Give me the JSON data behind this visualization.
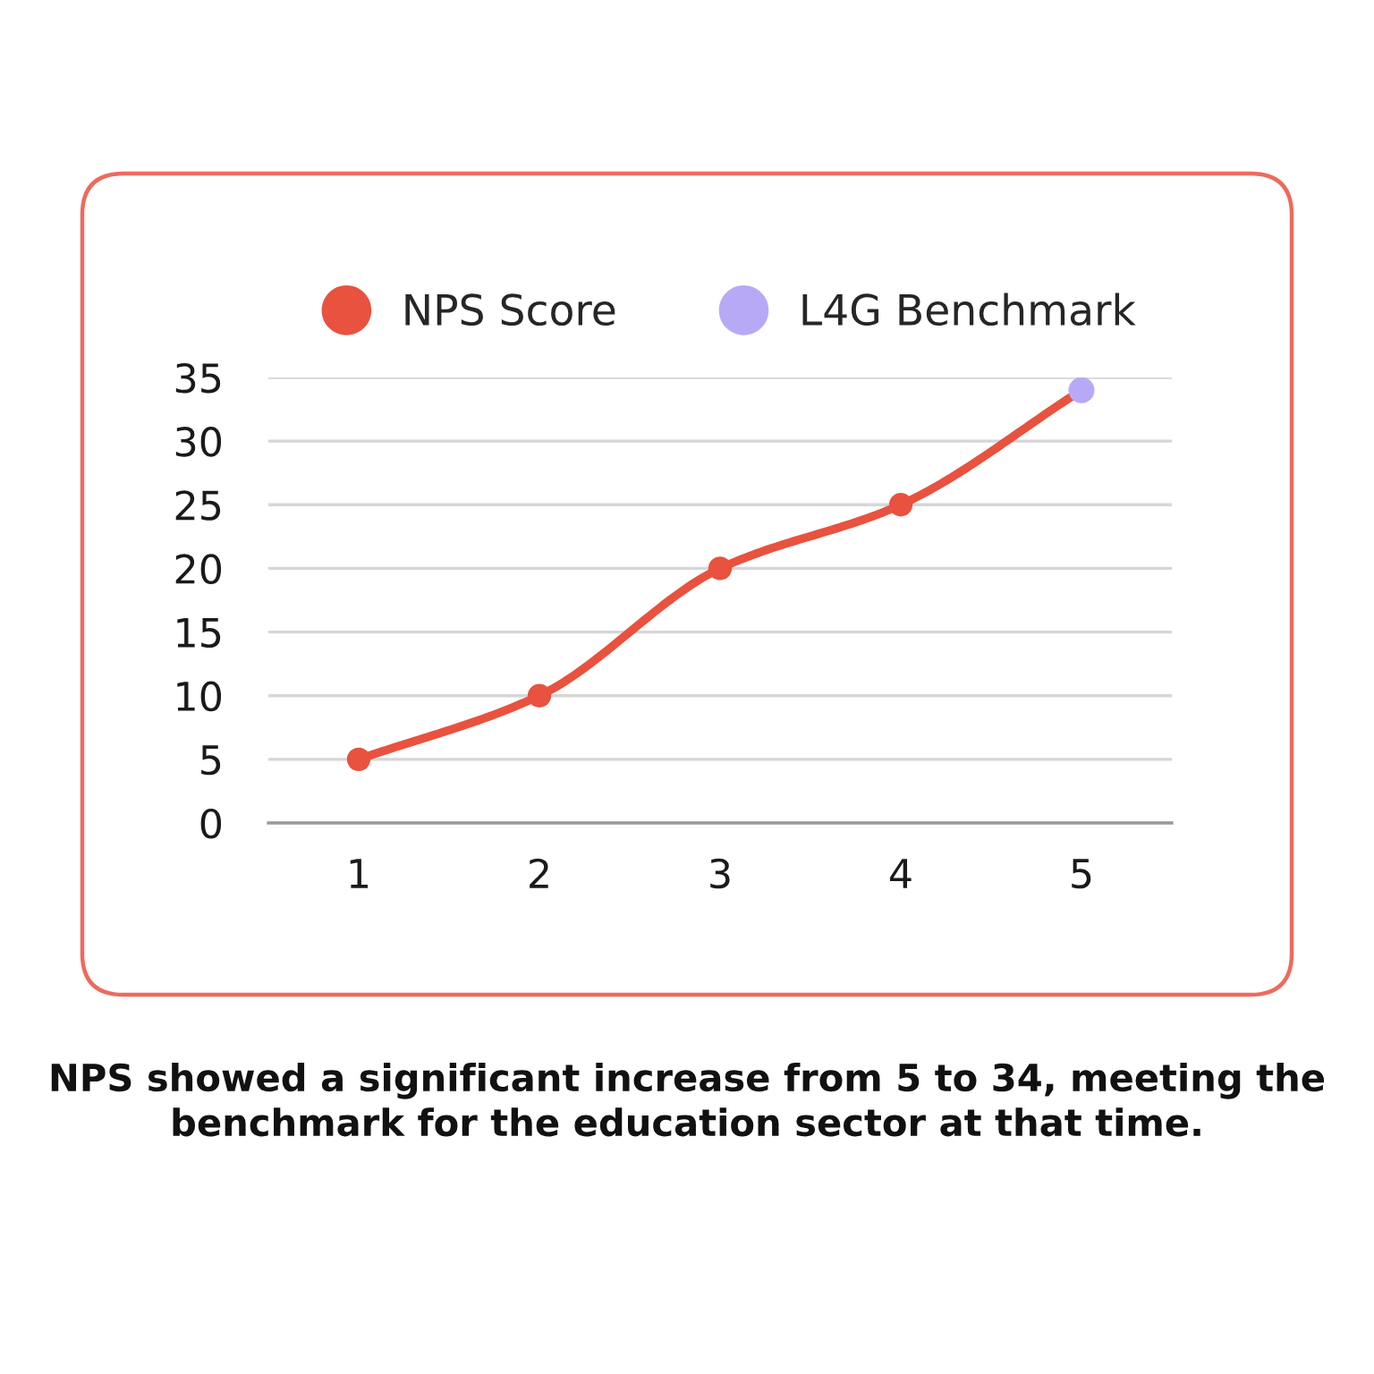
{
  "chart_data": {
    "type": "line",
    "categories": [
      "1",
      "2",
      "3",
      "4",
      "5"
    ],
    "series": [
      {
        "name": "NPS Score",
        "color": "#e8523f",
        "values": [
          5,
          10,
          20,
          25,
          34
        ]
      },
      {
        "name": "L4G Benchmark",
        "type": "scatter",
        "color": "#b8a9f6",
        "values": [
          null,
          null,
          null,
          null,
          34
        ]
      }
    ],
    "ylim": [
      0,
      35
    ],
    "yticks": [
      0,
      5,
      10,
      15,
      20,
      25,
      30,
      35
    ],
    "grid": "y",
    "legend": "top",
    "marker": "circle",
    "annotations": [
      "NPS showed a significant increase from 5 to 34, meeting the benchmark for the education sector at that time."
    ]
  }
}
